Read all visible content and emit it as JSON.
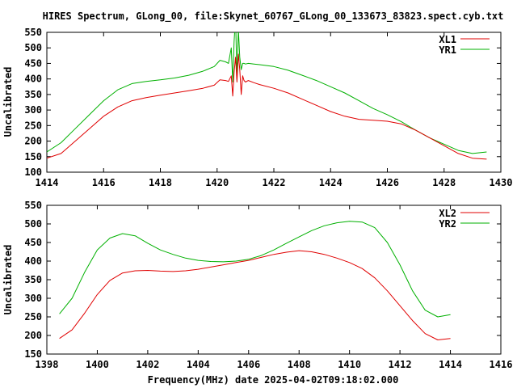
{
  "title": "HIRES Spectrum, GLong_00, file:Skynet_60767_GLong_00_133673_83823.spect.cyb.txt",
  "colors": {
    "red": "#e00000",
    "green": "#00b000",
    "axis": "#000000"
  },
  "chart_data": [
    {
      "type": "line",
      "xlabel": "",
      "ylabel": "Uncalibrated",
      "xlim": [
        1414,
        1430
      ],
      "ylim": [
        100,
        550
      ],
      "xticks": [
        1414,
        1416,
        1418,
        1420,
        1422,
        1424,
        1426,
        1428,
        1430
      ],
      "yticks": [
        100,
        150,
        200,
        250,
        300,
        350,
        400,
        450,
        500,
        550
      ],
      "legend_position": "top-right",
      "grid": false,
      "series": [
        {
          "name": "XL1",
          "color": "#e00000",
          "x": [
            1414,
            1414.5,
            1415,
            1415.5,
            1416,
            1416.5,
            1417,
            1417.5,
            1418,
            1418.5,
            1419,
            1419.5,
            1419.9,
            1420.1,
            1420.3,
            1420.4,
            1420.5,
            1420.55,
            1420.6,
            1420.65,
            1420.7,
            1420.75,
            1420.8,
            1420.85,
            1420.9,
            1420.95,
            1421.0,
            1421.1,
            1421.3,
            1421.5,
            1422,
            1422.5,
            1423,
            1423.5,
            1424,
            1424.5,
            1425,
            1425.5,
            1426,
            1426.5,
            1427,
            1427.5,
            1428,
            1428.5,
            1429,
            1429.5
          ],
          "y": [
            145,
            160,
            200,
            240,
            280,
            310,
            330,
            340,
            348,
            355,
            362,
            370,
            380,
            397,
            395,
            392,
            410,
            345,
            420,
            470,
            390,
            480,
            430,
            350,
            410,
            395,
            390,
            395,
            388,
            382,
            370,
            355,
            335,
            315,
            295,
            280,
            270,
            267,
            264,
            255,
            235,
            210,
            185,
            160,
            145,
            142
          ]
        },
        {
          "name": "YR1",
          "color": "#00b000",
          "x": [
            1414,
            1414.5,
            1415,
            1415.5,
            1416,
            1416.5,
            1417,
            1417.5,
            1418,
            1418.5,
            1419,
            1419.5,
            1419.9,
            1420.1,
            1420.3,
            1420.4,
            1420.5,
            1420.55,
            1420.6,
            1420.65,
            1420.7,
            1420.75,
            1420.8,
            1420.85,
            1420.9,
            1420.95,
            1421.0,
            1421.1,
            1421.3,
            1421.5,
            1422,
            1422.5,
            1423,
            1423.5,
            1424,
            1424.5,
            1425,
            1425.5,
            1426,
            1426.5,
            1427,
            1427.5,
            1428,
            1428.5,
            1429,
            1429.5
          ],
          "y": [
            165,
            195,
            240,
            285,
            330,
            365,
            385,
            392,
            397,
            403,
            412,
            425,
            440,
            460,
            455,
            450,
            500,
            390,
            520,
            600,
            400,
            560,
            470,
            430,
            450,
            450,
            448,
            450,
            448,
            446,
            440,
            428,
            412,
            395,
            375,
            355,
            330,
            305,
            285,
            262,
            235,
            210,
            190,
            170,
            160,
            165
          ]
        }
      ]
    },
    {
      "type": "line",
      "xlabel": "Frequency(MHz) date 2025-04-02T09:18:02.000",
      "ylabel": "Uncalibrated",
      "xlim": [
        1398,
        1416
      ],
      "ylim": [
        150,
        550
      ],
      "xticks": [
        1398,
        1400,
        1402,
        1404,
        1406,
        1408,
        1410,
        1412,
        1414,
        1416
      ],
      "yticks": [
        150,
        200,
        250,
        300,
        350,
        400,
        450,
        500,
        550
      ],
      "legend_position": "top-right",
      "grid": false,
      "series": [
        {
          "name": "XL2",
          "color": "#e00000",
          "x": [
            1398.5,
            1399,
            1399.5,
            1400,
            1400.5,
            1401,
            1401.5,
            1402,
            1402.5,
            1403,
            1403.5,
            1404,
            1404.5,
            1405,
            1405.5,
            1406,
            1406.5,
            1407,
            1407.5,
            1408,
            1408.5,
            1409,
            1409.5,
            1410,
            1410.5,
            1411,
            1411.5,
            1412,
            1412.5,
            1413,
            1413.5,
            1414
          ],
          "y": [
            192,
            215,
            260,
            310,
            348,
            368,
            374,
            375,
            373,
            372,
            374,
            378,
            384,
            390,
            396,
            402,
            410,
            418,
            424,
            428,
            425,
            418,
            408,
            396,
            380,
            355,
            320,
            280,
            240,
            205,
            188,
            192
          ]
        },
        {
          "name": "YR2",
          "color": "#00b000",
          "x": [
            1398.5,
            1399,
            1399.5,
            1400,
            1400.5,
            1401,
            1401.5,
            1402,
            1402.5,
            1403,
            1403.5,
            1404,
            1404.5,
            1405,
            1405.5,
            1406,
            1406.5,
            1407,
            1407.5,
            1408,
            1408.5,
            1409,
            1409.5,
            1410,
            1410.5,
            1411,
            1411.5,
            1412,
            1412.5,
            1413,
            1413.5,
            1414
          ],
          "y": [
            258,
            300,
            370,
            430,
            462,
            474,
            468,
            448,
            430,
            418,
            408,
            402,
            399,
            398,
            400,
            405,
            415,
            430,
            448,
            465,
            482,
            495,
            503,
            507,
            505,
            490,
            450,
            390,
            320,
            268,
            250,
            256
          ]
        }
      ]
    }
  ]
}
